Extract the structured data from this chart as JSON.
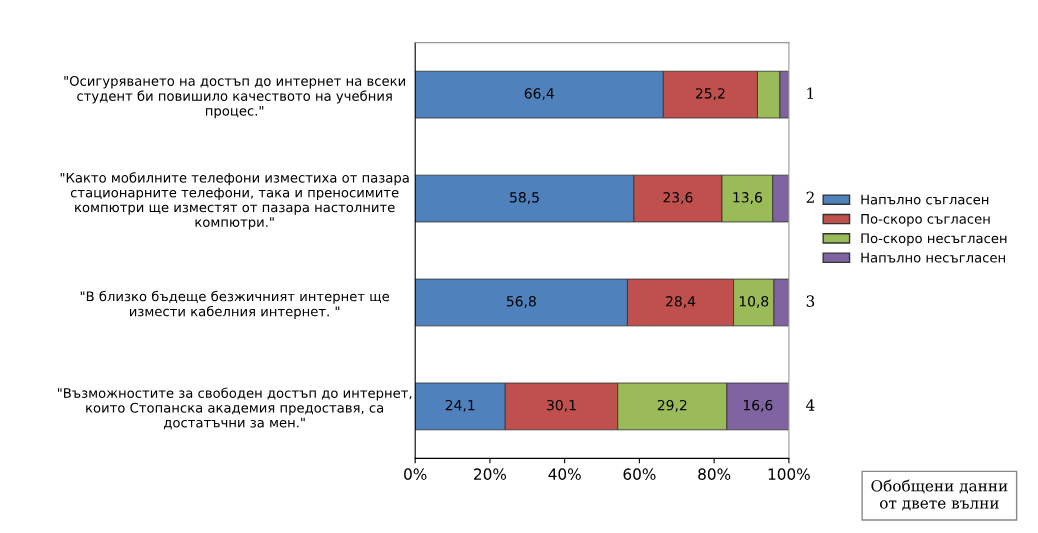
{
  "chart_data": {
    "type": "bar",
    "orientation": "horizontal",
    "stacked": true,
    "categories": [
      "\"Осигуряването на достъп до интернет на всеки\nстудент би повишило качеството на учебния\nпроцес.\"",
      "\"Както мобилните телефони изместиха от пазара\nстационарните телефони, така и преносимите\nкомпютри ще изместят от пазара настолните\nкомпютри.\"",
      "\"В близко бъдеще безжичният интернет ще\nизмести кабелния интернет. \"",
      "\"Възможностите за свободен достъп до интернет,\nкоито Стопанска академия предоставя, са\nдостатъчни за мен.\""
    ],
    "series": [
      {
        "name": "Напълно съгласен",
        "color": "#4f81bd",
        "values": [
          66.4,
          58.5,
          56.8,
          24.1
        ],
        "value_labels": [
          "66,4",
          "58,5",
          "56,8",
          "24,1"
        ]
      },
      {
        "name": "По-скоро съгласен",
        "color": "#c0504d",
        "values": [
          25.2,
          23.6,
          28.4,
          30.1
        ],
        "value_labels": [
          "25,2",
          "23,6",
          "28,4",
          "30,1"
        ]
      },
      {
        "name": "По-скоро несъгласен",
        "color": "#9bbb59",
        "values": [
          6.0,
          13.6,
          10.8,
          29.2
        ],
        "value_labels": [
          null,
          "13,6",
          "10,8",
          "29,2"
        ]
      },
      {
        "name": "Напълно несъгласен",
        "color": "#8064a2",
        "values": [
          2.4,
          4.3,
          4.0,
          16.6
        ],
        "value_labels": [
          null,
          null,
          null,
          "16,6"
        ]
      }
    ],
    "xlim": [
      0,
      100
    ],
    "xticks": [
      {
        "value": 0,
        "label": "0%"
      },
      {
        "value": 20,
        "label": "20%"
      },
      {
        "value": 40,
        "label": "40%"
      },
      {
        "value": 60,
        "label": "60%"
      },
      {
        "value": 80,
        "label": "80%"
      },
      {
        "value": 100,
        "label": "100%"
      }
    ],
    "grid": false,
    "legend": "right",
    "annotations": [
      "1",
      "2",
      "3",
      "4",
      "Обобщени данни\nот двете вълни"
    ]
  }
}
